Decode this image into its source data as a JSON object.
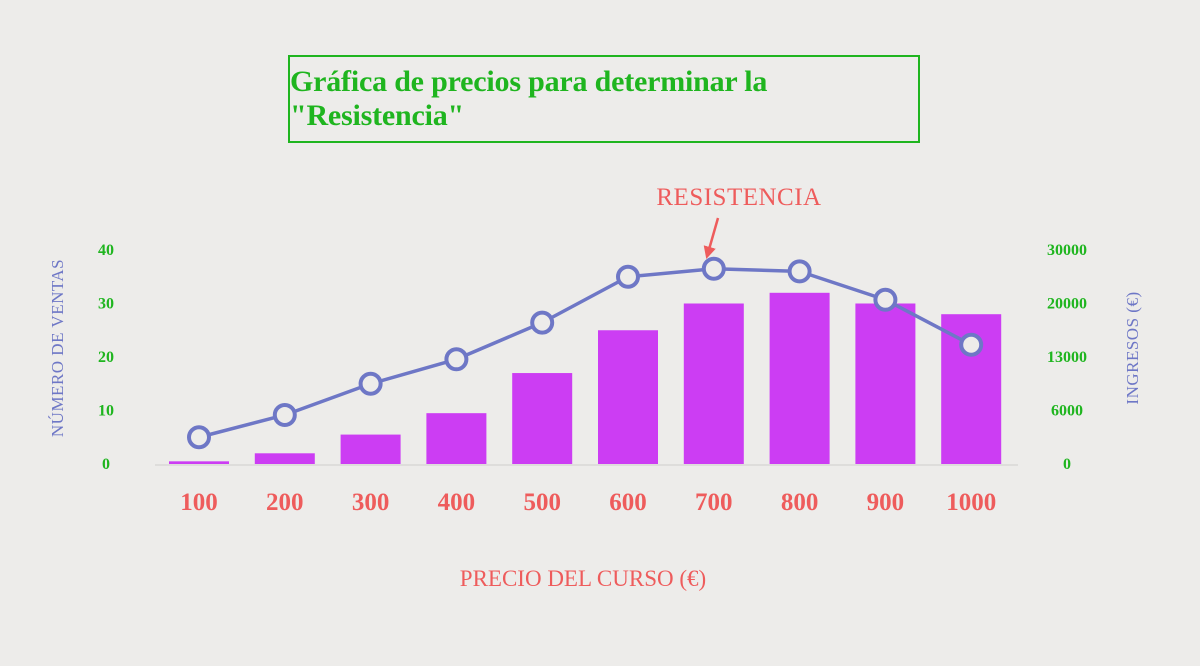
{
  "title": "Gráfica de precios para determinar la \"Resistencia\"",
  "annotation": "RESISTENCIA",
  "colors": {
    "title": "#1fb51f",
    "bar": "#cc3df3",
    "line": "#6e77c6",
    "x_labels": "#ee5c5c",
    "tick_labels": "#1fb51f"
  },
  "chart_data": {
    "type": "bar",
    "categories": [
      "100",
      "200",
      "300",
      "400",
      "500",
      "600",
      "700",
      "800",
      "900",
      "1000"
    ],
    "xlabel": "PRECIO DEL CURSO (€)",
    "ylabel_left": "NÚMERO DE VENTAS",
    "ylabel_right": "INGRESOS (€)",
    "left_ticks": [
      "0",
      "10",
      "20",
      "30",
      "40"
    ],
    "right_ticks": [
      "0",
      "6000",
      "13000",
      "20000",
      "30000"
    ],
    "left_ylim": [
      0,
      40
    ],
    "series": [
      {
        "type": "bar",
        "axis": "left",
        "values": [
          0.5,
          2,
          5.5,
          9.5,
          17,
          25,
          30,
          32,
          30,
          28
        ]
      },
      {
        "type": "line",
        "axis": "right",
        "values": [
          3000,
          5500,
          9500,
          12700,
          17500,
          25000,
          26500,
          26000,
          20700,
          14600
        ]
      }
    ],
    "annotations": [
      {
        "text": "RESISTENCIA",
        "category": "700"
      }
    ]
  }
}
